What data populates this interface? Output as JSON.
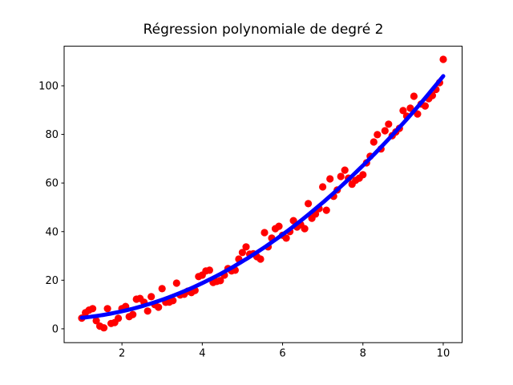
{
  "chart_data": {
    "type": "scatter",
    "title": "Régression polynomiale de degré 2",
    "xlabel": "",
    "ylabel": "",
    "xlim": [
      0.56,
      10.47
    ],
    "ylim": [
      -5.7,
      116.3
    ],
    "x_ticks": [
      2,
      4,
      6,
      8,
      10
    ],
    "y_ticks": [
      0,
      20,
      40,
      60,
      80,
      100
    ],
    "grid": false,
    "legend": "none",
    "colors": {
      "axis": "#000000",
      "background": "#ffffff",
      "scatter": "#ff0000",
      "regression_line": "#0000ff"
    },
    "series": [
      {
        "name": "scatter-points",
        "type": "scatter",
        "color": "#ff0000",
        "points": [
          [
            1.0,
            4.4
          ],
          [
            1.09,
            6.6
          ],
          [
            1.18,
            7.7
          ],
          [
            1.27,
            8.3
          ],
          [
            1.36,
            3.3
          ],
          [
            1.45,
            1.1
          ],
          [
            1.55,
            0.4
          ],
          [
            1.64,
            8.3
          ],
          [
            1.73,
            2.2
          ],
          [
            1.82,
            2.6
          ],
          [
            1.91,
            4.3
          ],
          [
            2.0,
            8.3
          ],
          [
            2.09,
            9.2
          ],
          [
            2.18,
            5.0
          ],
          [
            2.27,
            5.9
          ],
          [
            2.36,
            12.2
          ],
          [
            2.45,
            12.5
          ],
          [
            2.55,
            10.9
          ],
          [
            2.64,
            7.3
          ],
          [
            2.73,
            13.2
          ],
          [
            2.82,
            9.9
          ],
          [
            2.91,
            8.9
          ],
          [
            3.0,
            16.5
          ],
          [
            3.09,
            10.9
          ],
          [
            3.18,
            11.0
          ],
          [
            3.27,
            11.6
          ],
          [
            3.36,
            18.8
          ],
          [
            3.45,
            13.9
          ],
          [
            3.55,
            14.2
          ],
          [
            3.64,
            15.5
          ],
          [
            3.73,
            14.9
          ],
          [
            3.82,
            15.8
          ],
          [
            3.91,
            21.5
          ],
          [
            4.0,
            22.1
          ],
          [
            4.09,
            23.8
          ],
          [
            4.18,
            24.1
          ],
          [
            4.27,
            19.1
          ],
          [
            4.36,
            19.5
          ],
          [
            4.45,
            19.8
          ],
          [
            4.55,
            22.1
          ],
          [
            4.64,
            24.8
          ],
          [
            4.73,
            23.8
          ],
          [
            4.82,
            24.1
          ],
          [
            4.91,
            28.7
          ],
          [
            5.0,
            31.4
          ],
          [
            5.09,
            33.7
          ],
          [
            5.18,
            30.7
          ],
          [
            5.27,
            30.9
          ],
          [
            5.36,
            29.7
          ],
          [
            5.45,
            28.7
          ],
          [
            5.55,
            39.6
          ],
          [
            5.64,
            33.7
          ],
          [
            5.73,
            37.3
          ],
          [
            5.82,
            41.2
          ],
          [
            5.91,
            42.2
          ],
          [
            6.0,
            38.5
          ],
          [
            6.09,
            37.3
          ],
          [
            6.18,
            40.0
          ],
          [
            6.27,
            44.5
          ],
          [
            6.36,
            41.9
          ],
          [
            6.45,
            42.9
          ],
          [
            6.55,
            41.2
          ],
          [
            6.64,
            51.5
          ],
          [
            6.73,
            45.5
          ],
          [
            6.82,
            47.2
          ],
          [
            6.91,
            49.5
          ],
          [
            7.0,
            58.4
          ],
          [
            7.09,
            48.8
          ],
          [
            7.18,
            61.7
          ],
          [
            7.27,
            54.5
          ],
          [
            7.36,
            57.1
          ],
          [
            7.45,
            62.7
          ],
          [
            7.55,
            65.3
          ],
          [
            7.64,
            62.0
          ],
          [
            7.73,
            59.5
          ],
          [
            7.82,
            61.1
          ],
          [
            7.91,
            62.0
          ],
          [
            8.0,
            63.4
          ],
          [
            8.09,
            68.3
          ],
          [
            8.18,
            71.0
          ],
          [
            8.27,
            76.9
          ],
          [
            8.36,
            79.9
          ],
          [
            8.45,
            74.0
          ],
          [
            8.55,
            81.5
          ],
          [
            8.64,
            84.2
          ],
          [
            8.73,
            79.5
          ],
          [
            8.82,
            81.0
          ],
          [
            8.91,
            82.5
          ],
          [
            9.0,
            89.8
          ],
          [
            9.09,
            87.5
          ],
          [
            9.18,
            90.8
          ],
          [
            9.27,
            95.7
          ],
          [
            9.36,
            88.4
          ],
          [
            9.45,
            92.5
          ],
          [
            9.55,
            91.7
          ],
          [
            9.64,
            94.7
          ],
          [
            9.73,
            96.0
          ],
          [
            9.82,
            98.5
          ],
          [
            9.91,
            101.3
          ],
          [
            10.0,
            110.9
          ]
        ]
      },
      {
        "name": "regression-curve",
        "type": "line",
        "color": "#0000ff",
        "linewidth": 5,
        "poly_coeffs": [
          1.05,
          -0.5,
          4.0
        ],
        "x_range": [
          1.0,
          10.0
        ]
      }
    ]
  }
}
